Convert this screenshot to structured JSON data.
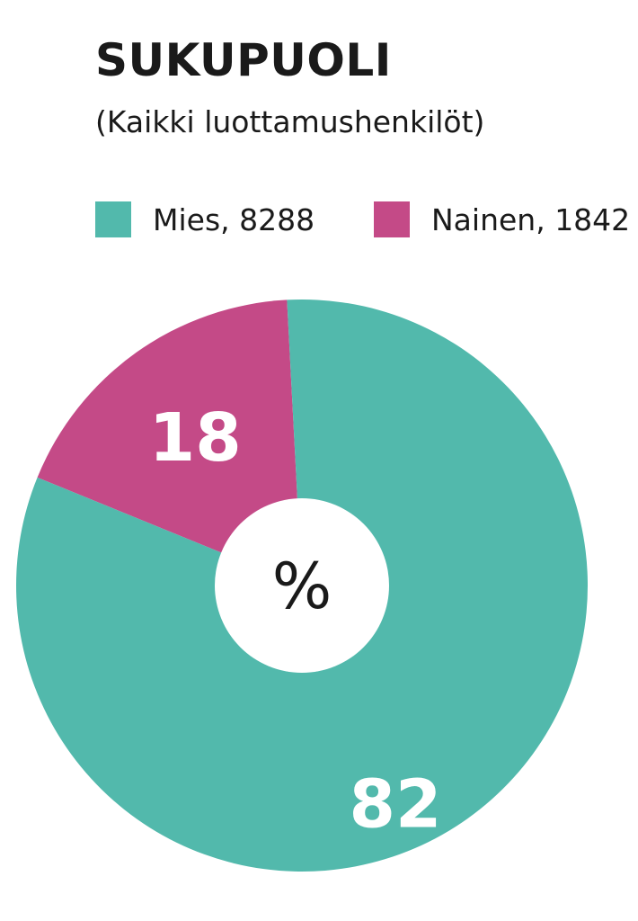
{
  "title": "SUKUPUOLI",
  "subtitle": "(Kaikki luottamushenkilöt)",
  "legend": {
    "mies": "Mies, 8288",
    "nainen": "Nainen, 1842"
  },
  "center_label": "%",
  "colors": {
    "mies": "#52b9ac",
    "nainen": "#c44a87"
  },
  "chart_data": {
    "type": "pie",
    "title": "SUKUPUOLI",
    "subtitle": "(Kaikki luottamushenkilöt)",
    "legend_position": "top",
    "center_label": "%",
    "slices": [
      {
        "name": "Mies",
        "count": 8288,
        "value": 82,
        "label": "82",
        "color": "#52b9ac"
      },
      {
        "name": "Nainen",
        "count": 1842,
        "value": 18,
        "label": "18",
        "color": "#c44a87"
      }
    ]
  }
}
